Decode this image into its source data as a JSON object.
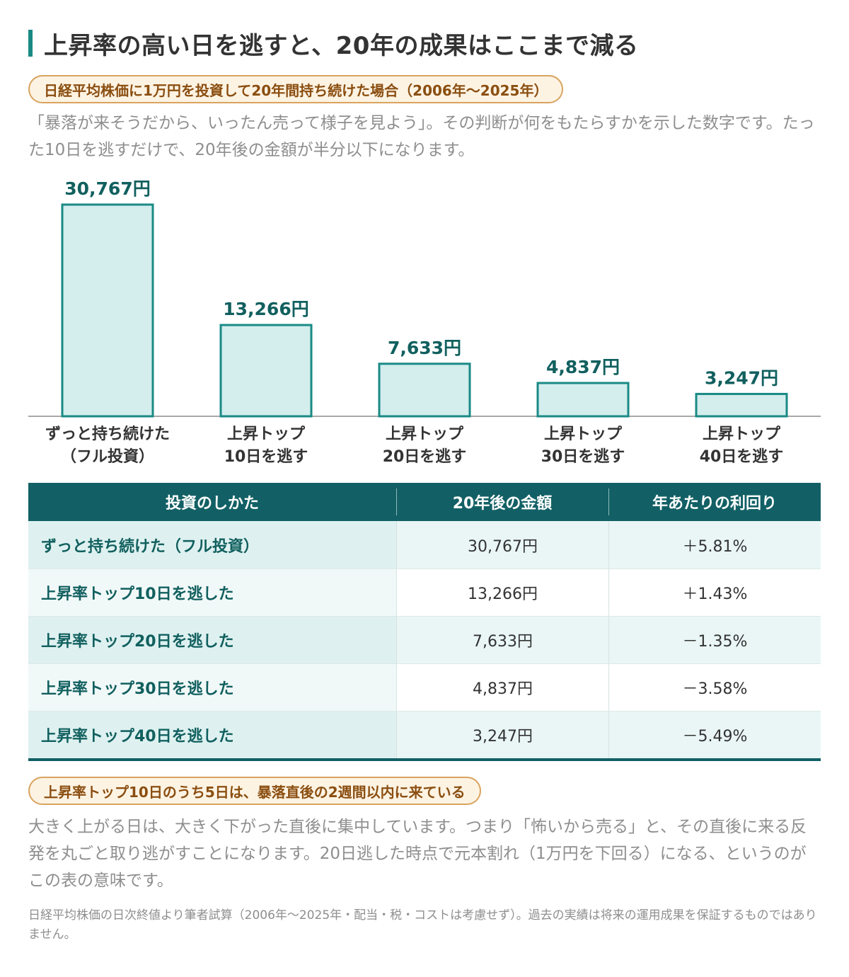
{
  "title": "上昇率の高い日を逃すと、20年の成果はここまで減る",
  "subtitle_pill": "日経平均株価に1万円を投資して20年間持ち続けた場合（2006年～2025年）",
  "intro_text": "「暴落が来そうだから、いったん売って様子を見よう」。その判断が何をもたらすかを示した数字です。たった10日を逃すだけで、20年後の金額が半分以下になります。",
  "chart_data": {
    "type": "bar",
    "categories": [
      "ずっと持ち続けた\n（フル投資）",
      "上昇トップ\n10日を逃す",
      "上昇トップ\n20日を逃す",
      "上昇トップ\n30日を逃す",
      "上昇トップ\n40日を逃す"
    ],
    "values": [
      30767,
      13266,
      7633,
      4837,
      3247
    ],
    "value_labels": [
      "30,767円",
      "13,266円",
      "7,633円",
      "4,837円",
      "3,247円"
    ],
    "title": "",
    "xlabel": "",
    "ylabel": "",
    "ylim": [
      0,
      30767
    ],
    "grid": false,
    "legend": "none",
    "bar_fill": "#d3eeed",
    "bar_stroke": "#1a8a85",
    "label_color": "#11605f"
  },
  "table": {
    "headers": [
      "投資のしかた",
      "20年後の金額",
      "年あたりの利回り"
    ],
    "rows": [
      {
        "method": "ずっと持ち続けた（フル投資）",
        "amount": "30,767円",
        "yield": "＋5.81%"
      },
      {
        "method": "上昇率トップ10日を逃した",
        "amount": "13,266円",
        "yield": "＋1.43%"
      },
      {
        "method": "上昇率トップ20日を逃した",
        "amount": "7,633円",
        "yield": "－1.35%"
      },
      {
        "method": "上昇率トップ30日を逃した",
        "amount": "4,837円",
        "yield": "－3.58%"
      },
      {
        "method": "上昇率トップ40日を逃した",
        "amount": "3,247円",
        "yield": "－5.49%"
      }
    ]
  },
  "insight_pill": "上昇率トップ10日のうち5日は、暴落直後の2週間以内に来ている",
  "insight_text": "大きく上がる日は、大きく下がった直後に集中しています。つまり「怖いから売る」と、その直後に来る反発を丸ごと取り逃がすことになります。20日逃した時点で元本割れ（1万円を下回る）になる、というのがこの表の意味です。",
  "footnote": "日経平均株価の日次終値より筆者試算（2006年～2025年・配当・税・コストは考慮せず）。過去の実績は将来の運用成果を保証するものではありません。",
  "colors": {
    "accent": "#1a8a85",
    "header_bg": "#126065",
    "pill_border": "#d9a35e",
    "pill_text": "#8a4e10"
  }
}
